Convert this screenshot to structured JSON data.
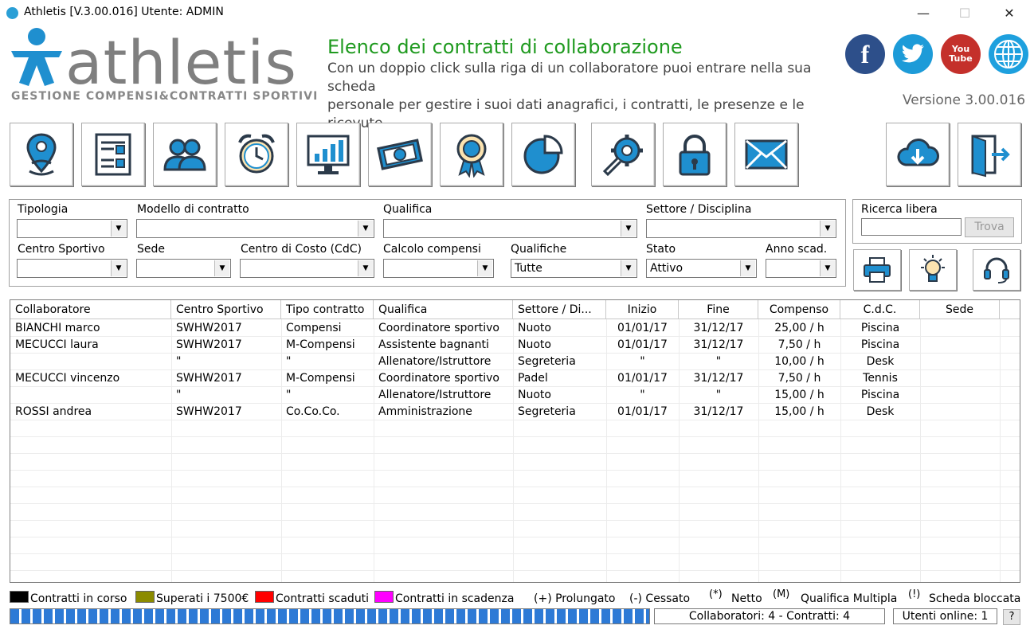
{
  "window": {
    "title": "Athletis [V.3.00.016] Utente: ADMIN",
    "minimize": "—",
    "maximize": "☐",
    "close": "✕"
  },
  "header": {
    "logo_word": "athletis",
    "logo_sub": "GESTIONE COMPENSI&CONTRATTI SPORTIVI",
    "title": "Elenco dei contratti di collaborazione",
    "desc_line1": "Con un doppio click sulla riga di un collaboratore puoi entrare nella sua scheda",
    "desc_line2": "personale per gestire i suoi dati anagrafici, i contratti, le presenze e le ricevute",
    "version": "Versione 3.00.016",
    "social": [
      {
        "name": "facebook-icon",
        "glyph": "f",
        "color": "#2d4f8a"
      },
      {
        "name": "twitter-icon",
        "glyph": "t",
        "color": "#1d9bd8"
      },
      {
        "name": "youtube-icon",
        "glyph": "You Tube",
        "color": "#c4302b"
      },
      {
        "name": "globe-icon",
        "glyph": "",
        "color": "#1ea0de"
      }
    ]
  },
  "colors": {
    "accent_blue": "#1f8fcf",
    "icon_dark": "#2b3a4a",
    "title_green": "#1f9a1f",
    "legend_black": "#000000",
    "legend_olive": "#8b8b00",
    "legend_red": "#ff0000",
    "legend_magenta": "#ff00ff"
  },
  "toolbar": [
    "location-person-icon",
    "checklist-icon",
    "people-icon",
    "alarm-clock-icon",
    "chart-monitor-icon",
    "money-icon",
    "award-ribbon-icon",
    "pie-chart-icon",
    "settings-wrench-icon",
    "lock-icon",
    "mail-icon"
  ],
  "filters": {
    "tipologia": {
      "label": "Tipologia",
      "value": ""
    },
    "modello": {
      "label": "Modello di contratto",
      "value": ""
    },
    "qualifica": {
      "label": "Qualifica",
      "value": ""
    },
    "settore": {
      "label": "Settore / Disciplina",
      "value": ""
    },
    "centro": {
      "label": "Centro Sportivo",
      "value": ""
    },
    "sede": {
      "label": "Sede",
      "value": ""
    },
    "cdc": {
      "label": "Centro di Costo (CdC)",
      "value": ""
    },
    "calcolo": {
      "label": "Calcolo compensi",
      "value": ""
    },
    "qualifiche": {
      "label": "Qualifiche",
      "value": "Tutte"
    },
    "stato": {
      "label": "Stato",
      "value": "Attivo"
    },
    "anno": {
      "label": "Anno scad.",
      "value": ""
    }
  },
  "search": {
    "label": "Ricerca libera",
    "value": "",
    "button": "Trova"
  },
  "table": {
    "columns": [
      "Collaboratore",
      "Centro Sportivo",
      "Tipo contratto",
      "Qualifica",
      "Settore / Di...",
      "Inizio",
      "Fine",
      "Compenso",
      "C.d.C.",
      "Sede"
    ],
    "rows": [
      [
        "BIANCHI marco",
        "SWHW2017",
        "Compensi",
        "Coordinatore sportivo",
        "Nuoto",
        "01/01/17",
        "31/12/17",
        "25,00 / h",
        "Piscina",
        ""
      ],
      [
        "MECUCCI laura",
        "SWHW2017",
        "M-Compensi",
        "Assistente bagnanti",
        "Nuoto",
        "01/01/17",
        "31/12/17",
        "7,50 / h",
        "Piscina",
        ""
      ],
      [
        "",
        "\"",
        "\"",
        "Allenatore/Istruttore",
        "Segreteria",
        "\"",
        "\"",
        "10,00 / h",
        "Desk",
        ""
      ],
      [
        "MECUCCI vincenzo",
        "SWHW2017",
        "M-Compensi",
        "Coordinatore sportivo",
        "Padel",
        "01/01/17",
        "31/12/17",
        "7,50 / h",
        "Tennis",
        ""
      ],
      [
        "",
        "\"",
        "\"",
        "Allenatore/Istruttore",
        "Nuoto",
        "\"",
        "\"",
        "15,00 / h",
        "Piscina",
        ""
      ],
      [
        "ROSSI andrea",
        "SWHW2017",
        "Co.Co.Co.",
        "Amministrazione",
        "Segreteria",
        "01/01/17",
        "31/12/17",
        "15,00 / h",
        "Desk",
        ""
      ]
    ]
  },
  "legend": {
    "in_corso": "Contratti in corso",
    "superati": "Superati i 7500€",
    "scaduti": "Contratti scaduti",
    "in_scadenza": "Contratti in scadenza",
    "prolungato": "(+) Prolungato",
    "cessato": "(-) Cessato",
    "netto_sym": "(*)",
    "netto": "Netto",
    "multi_sym": "(M)",
    "multi": "Qualifica Multipla",
    "bloccata_sym": "(!)",
    "bloccata": "Scheda bloccata"
  },
  "status": {
    "counts": "Collaboratori: 4 - Contratti: 4",
    "online": "Utenti online: 1",
    "help": "?"
  }
}
